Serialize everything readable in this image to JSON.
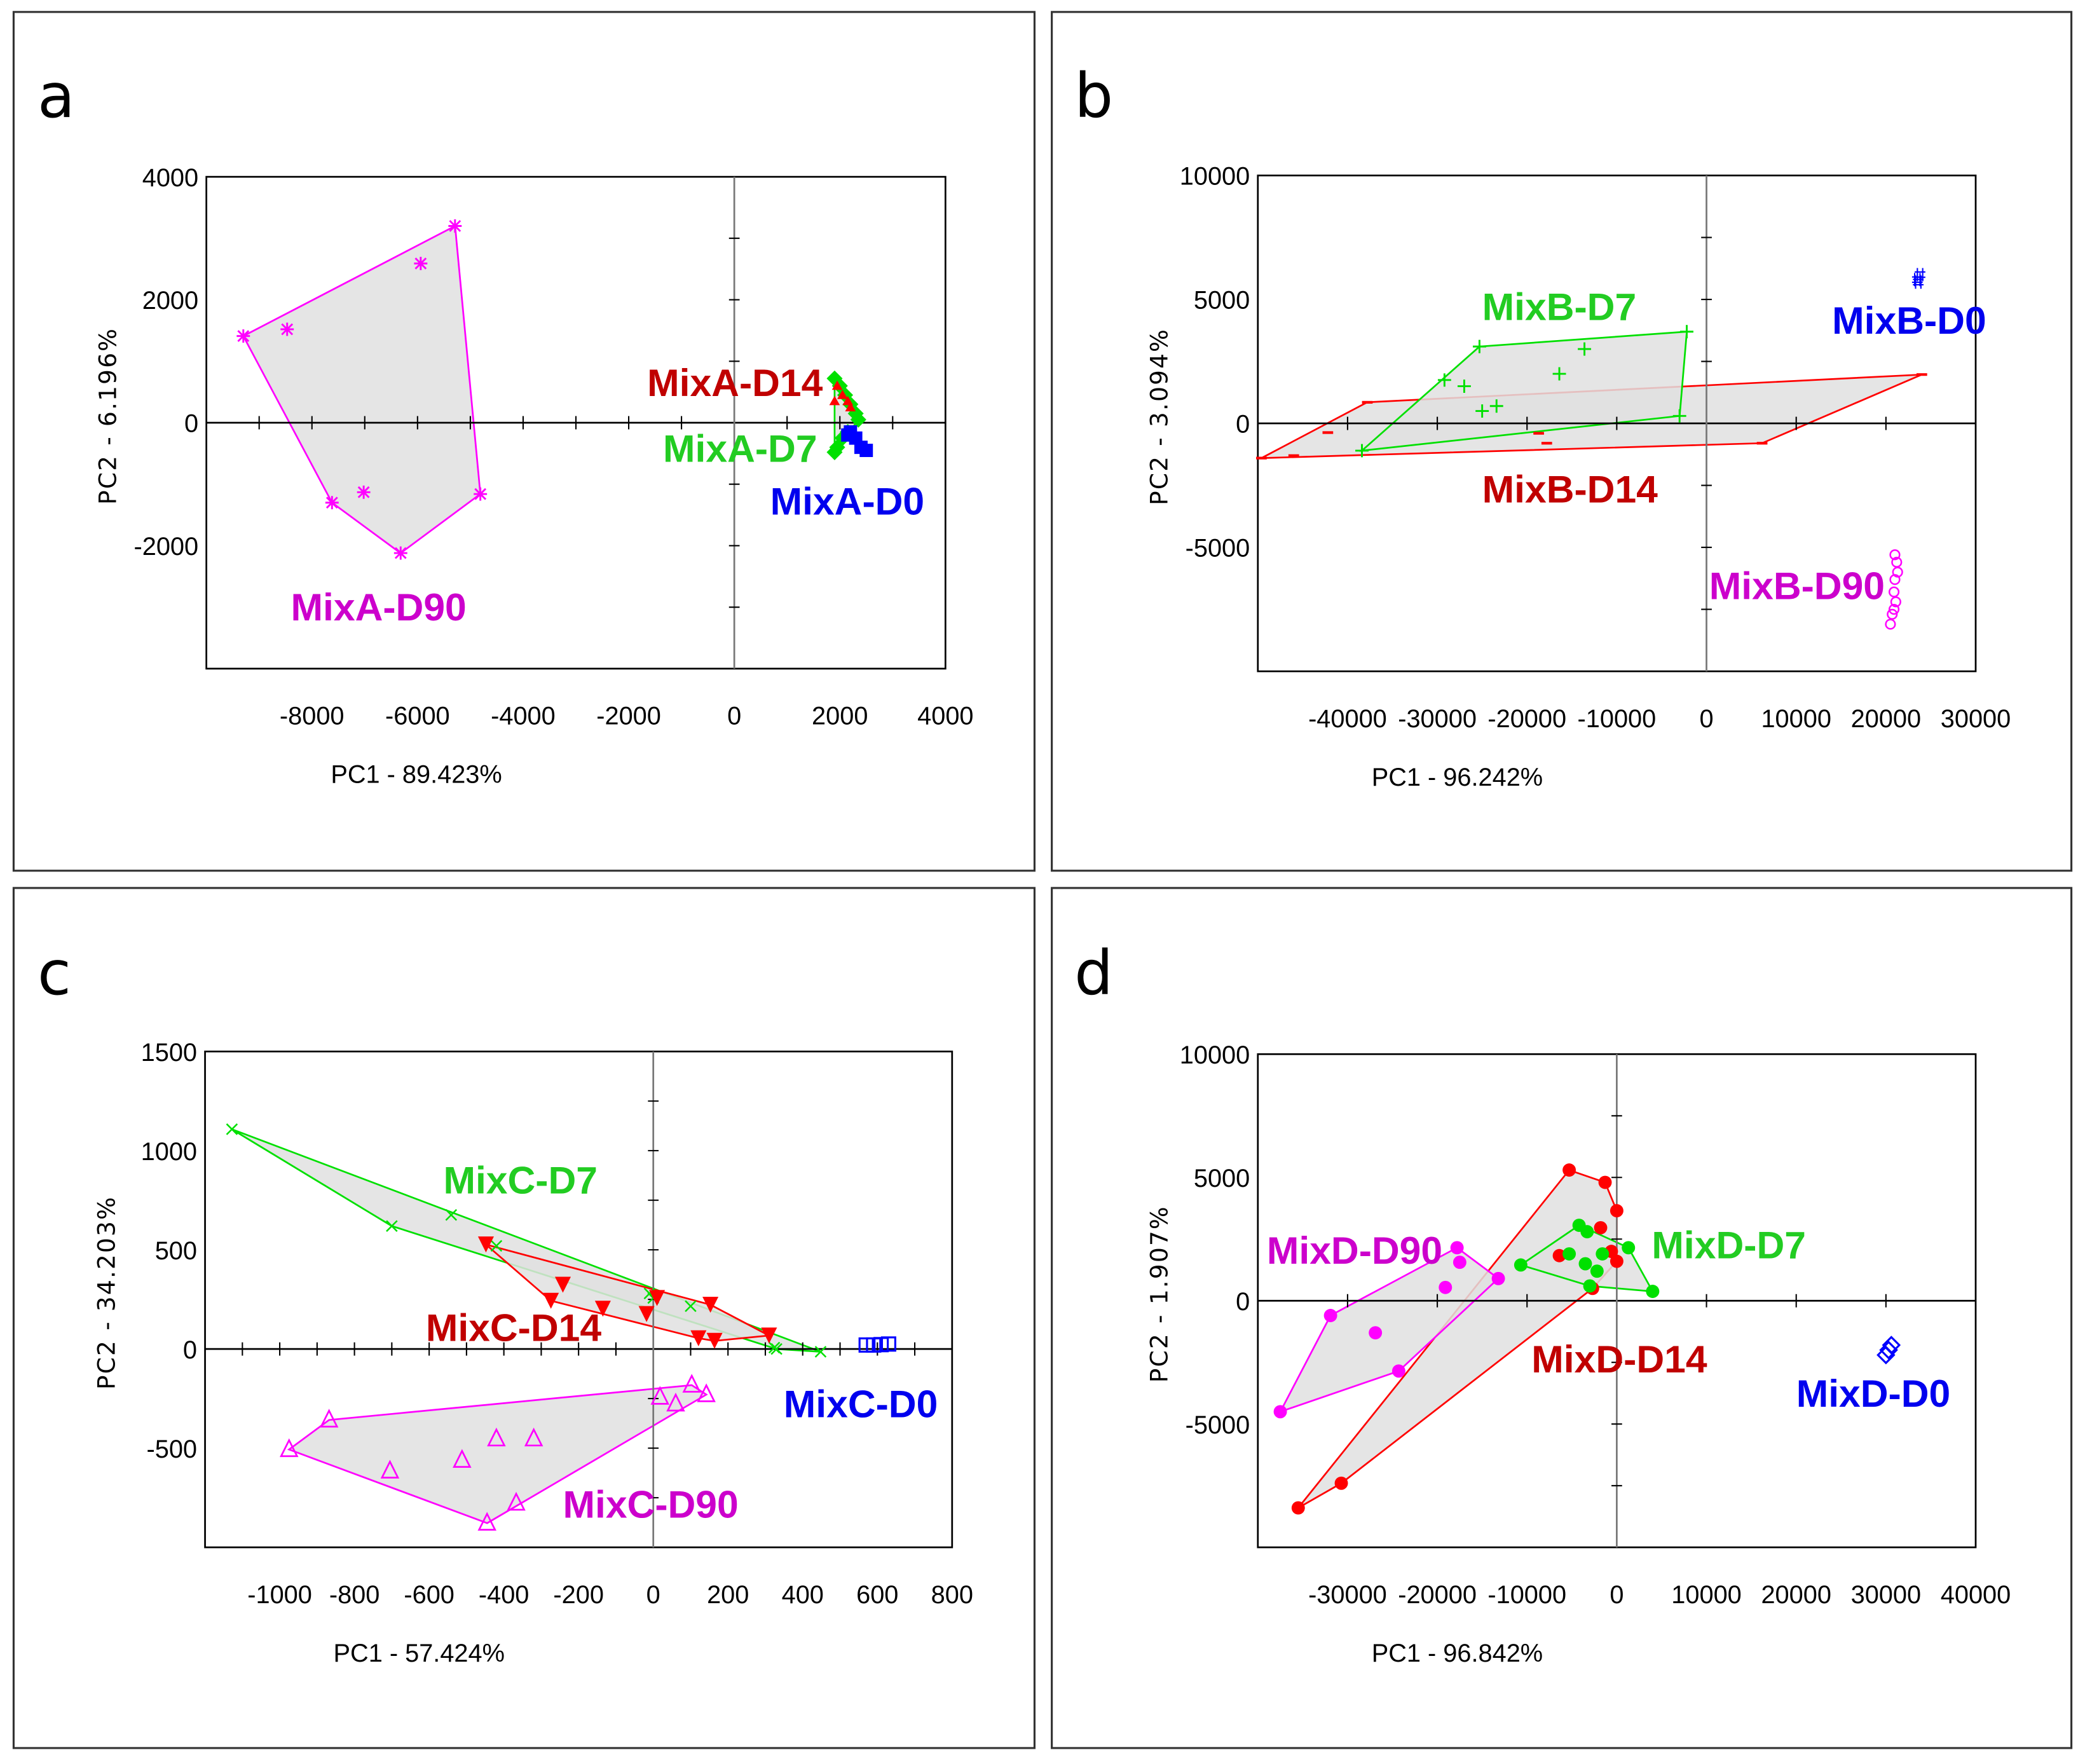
{
  "chart_data": [
    {
      "type": "scatter",
      "panel": "a",
      "xlabel": "PC1 - 89.423%",
      "ylabel": "PC2 - 6.196%",
      "xlim": [
        -10000,
        4000
      ],
      "ylim": [
        -4000,
        4000
      ],
      "xticks": [
        -8000,
        -6000,
        -4000,
        -2000,
        0,
        2000,
        4000
      ],
      "xstep": 1000,
      "yticks": [
        4000,
        2000,
        0,
        -2000
      ],
      "ystep": 1000,
      "series": [
        {
          "name": "MixA-D90",
          "marker": "asterisk",
          "color": "#ff00ff",
          "label_color": "#cc00cc",
          "hull": true,
          "label_at": [
            -8400,
            -3000
          ],
          "points": [
            [
              -9300,
              1410
            ],
            [
              -8470,
              1520
            ],
            [
              -5290,
              3200
            ],
            [
              -5940,
              2590
            ],
            [
              -4810,
              -1160
            ],
            [
              -6320,
              -2120
            ],
            [
              -7620,
              -1300
            ],
            [
              -7020,
              -1130
            ]
          ]
        },
        {
          "name": "MixA-D7",
          "marker": "diamond",
          "color": "#00e000",
          "label_color": "#22cc22",
          "hull": true,
          "label_at": [
            -1350,
            -420
          ],
          "points": [
            [
              1900,
              720
            ],
            [
              2000,
              600
            ],
            [
              2100,
              450
            ],
            [
              2200,
              300
            ],
            [
              2300,
              150
            ],
            [
              2350,
              50
            ],
            [
              1950,
              -400
            ],
            [
              2050,
              -250
            ],
            [
              2150,
              -150
            ],
            [
              1900,
              -480
            ]
          ]
        },
        {
          "name": "MixA-D14",
          "marker": "tri-up",
          "color": "#ff0000",
          "label_color": "#c00000",
          "hull": false,
          "label_at": [
            -1650,
            650
          ],
          "points": [
            [
              1950,
              600
            ],
            [
              2050,
              450
            ],
            [
              2150,
              350
            ],
            [
              2200,
              250
            ],
            [
              1900,
              350
            ]
          ]
        },
        {
          "name": "MixA-D0",
          "marker": "square-filled",
          "color": "#0000ff",
          "label_color": "#0000ee",
          "hull": false,
          "label_at": [
            680,
            -1280
          ],
          "points": [
            [
              2150,
              -200
            ],
            [
              2200,
              -150
            ],
            [
              2300,
              -250
            ],
            [
              2400,
              -400
            ],
            [
              2500,
              -450
            ]
          ]
        }
      ]
    },
    {
      "type": "scatter",
      "panel": "b",
      "xlabel": "PC1 - 96.242%",
      "ylabel": "PC2 - 3.094%",
      "xlim": [
        -50000,
        30000
      ],
      "ylim": [
        -10000,
        10000
      ],
      "xticks": [
        -40000,
        -30000,
        -20000,
        -10000,
        0,
        10000,
        20000,
        30000
      ],
      "xstep": 10000,
      "yticks": [
        10000,
        5000,
        0,
        -5000
      ],
      "ystep": 2500,
      "series": [
        {
          "name": "MixB-D14",
          "marker": "minus",
          "color": "#ff0000",
          "label_color": "#c00000",
          "hull": true,
          "label_at": [
            -25000,
            -2650
          ],
          "points": [
            [
              -49600,
              -1400
            ],
            [
              -37800,
              850
            ],
            [
              24000,
              1970
            ],
            [
              6200,
              -800
            ],
            [
              -42200,
              -370
            ],
            [
              -18700,
              -400
            ],
            [
              -17800,
              -800
            ],
            [
              -46000,
              -1300
            ]
          ]
        },
        {
          "name": "MixB-D7",
          "marker": "plus",
          "color": "#00e000",
          "label_color": "#22cc22",
          "hull": true,
          "label_at": [
            -25000,
            4700
          ],
          "points": [
            [
              -38400,
              -1100
            ],
            [
              -25300,
              3100
            ],
            [
              -2200,
              3700
            ],
            [
              -3000,
              300
            ],
            [
              -29200,
              1750
            ],
            [
              -27000,
              1500
            ],
            [
              -16400,
              2000
            ],
            [
              -13600,
              3000
            ],
            [
              -25000,
              500
            ],
            [
              -23400,
              700
            ]
          ]
        },
        {
          "name": "MixB-D0",
          "marker": "hash",
          "color": "#0000ff",
          "label_color": "#0000ee",
          "hull": false,
          "label_at": [
            14000,
            4150
          ],
          "points": [
            [
              23500,
              5800
            ],
            [
              23800,
              6000
            ],
            [
              23600,
              5700
            ]
          ]
        },
        {
          "name": "MixB-D90",
          "marker": "circle-open",
          "color": "#ff00ff",
          "label_color": "#cc00cc",
          "hull": false,
          "label_at": [
            300,
            -6550
          ],
          "points": [
            [
              21000,
              -5300
            ],
            [
              21200,
              -5600
            ],
            [
              21300,
              -6000
            ],
            [
              21000,
              -6300
            ],
            [
              20900,
              -6800
            ],
            [
              21100,
              -7200
            ],
            [
              20700,
              -7700
            ],
            [
              20500,
              -8100
            ],
            [
              20900,
              -7500
            ]
          ]
        }
      ]
    },
    {
      "type": "scatter",
      "panel": "c",
      "xlabel": "PC1 - 57.424%",
      "ylabel": "PC2 - 34.203%",
      "xlim": [
        -1200,
        800
      ],
      "ylim": [
        -1000,
        1500
      ],
      "xticks": [
        -1000,
        -800,
        -600,
        -400,
        -200,
        0,
        200,
        400,
        600,
        800
      ],
      "xstep": 100,
      "yticks": [
        1500,
        1000,
        500,
        0,
        -500
      ],
      "ystep": 250,
      "series": [
        {
          "name": "MixC-D7",
          "marker": "cross",
          "color": "#00e000",
          "label_color": "#22cc22",
          "hull": true,
          "label_at": [
            -562,
            851
          ],
          "points": [
            [
              -1128,
              1108
            ],
            [
              -700,
              620
            ],
            [
              -541,
              676
            ],
            [
              -420,
              520
            ],
            [
              100,
              216
            ],
            [
              0,
              257
            ],
            [
              324,
              7
            ],
            [
              448,
              -14
            ],
            [
              330,
              0
            ],
            [
              -10,
              280
            ]
          ]
        },
        {
          "name": "MixC-D14",
          "marker": "tri-down-filled",
          "color": "#ff0000",
          "label_color": "#c00000",
          "hull": true,
          "label_at": [
            -609,
            108
          ],
          "points": [
            [
              -448,
              527
            ],
            [
              -242,
              324
            ],
            [
              -274,
              243
            ],
            [
              -135,
              203
            ],
            [
              -18,
              176
            ],
            [
              10,
              257
            ],
            [
              153,
              223
            ],
            [
              121,
              54
            ],
            [
              164,
              41
            ],
            [
              310,
              68
            ]
          ]
        },
        {
          "name": "MixC-D0",
          "marker": "square-open",
          "color": "#0000ff",
          "label_color": "#0000ee",
          "hull": false,
          "label_at": [
            349,
            -277
          ],
          "points": [
            [
              570,
              20
            ],
            [
              590,
              20
            ],
            [
              610,
              22
            ],
            [
              630,
              25
            ]
          ]
        },
        {
          "name": "MixC-D90",
          "marker": "tri-up-open",
          "color": "#ff00ff",
          "label_color": "#cc00cc",
          "hull": true,
          "label_at": [
            -242,
            -784
          ],
          "points": [
            [
              -975,
              -507
            ],
            [
              -868,
              -358
            ],
            [
              -705,
              -615
            ],
            [
              -512,
              -561
            ],
            [
              -420,
              -453
            ],
            [
              -320,
              -453
            ],
            [
              -445,
              -878
            ],
            [
              -367,
              -777
            ],
            [
              18,
              -243
            ],
            [
              60,
              -277
            ],
            [
              103,
              -182
            ],
            [
              142,
              -230
            ]
          ]
        }
      ]
    },
    {
      "type": "scatter",
      "panel": "d",
      "xlabel": "PC1 - 96.842%",
      "ylabel": "PC2 - 1.907%",
      "xlim": [
        -40000,
        40000
      ],
      "ylim": [
        -10000,
        10000
      ],
      "xticks": [
        -30000,
        -20000,
        -10000,
        0,
        10000,
        20000,
        30000,
        40000
      ],
      "xstep": 10000,
      "yticks": [
        10000,
        5000,
        0,
        -5000
      ],
      "ystep": 2500,
      "series": [
        {
          "name": "MixD-D14",
          "marker": "dot",
          "color": "#ff0000",
          "label_color": "#c00000",
          "hull": true,
          "label_at": [
            -9500,
            -2370
          ],
          "points": [
            [
              -5300,
              5300
            ],
            [
              -1300,
              4800
            ],
            [
              0,
              3650
            ],
            [
              -1800,
              2960
            ],
            [
              -6400,
              1830
            ],
            [
              -600,
              2000
            ],
            [
              0,
              1600
            ],
            [
              -2700,
              500
            ],
            [
              -30700,
              -7400
            ],
            [
              -35500,
              -8400
            ]
          ]
        },
        {
          "name": "MixD-D7",
          "marker": "dot",
          "color": "#00e000",
          "label_color": "#22cc22",
          "hull": true,
          "label_at": [
            3900,
            2260
          ],
          "points": [
            [
              -10700,
              1450
            ],
            [
              -4200,
              3060
            ],
            [
              -3300,
              2800
            ],
            [
              -5300,
              1900
            ],
            [
              -3500,
              1500
            ],
            [
              -1600,
              1900
            ],
            [
              1300,
              2150
            ],
            [
              4000,
              380
            ],
            [
              -2200,
              1200
            ],
            [
              -3000,
              600
            ]
          ]
        },
        {
          "name": "MixD-D90",
          "marker": "dot",
          "color": "#ff00ff",
          "label_color": "#cc00cc",
          "hull": true,
          "label_at": [
            -39000,
            2040
          ],
          "points": [
            [
              -37500,
              -4500
            ],
            [
              -31900,
              -600
            ],
            [
              -26900,
              -1300
            ],
            [
              -24300,
              -2850
            ],
            [
              -17800,
              2150
            ],
            [
              -17500,
              1560
            ],
            [
              -19100,
              540
            ],
            [
              -13200,
              900
            ]
          ]
        },
        {
          "name": "MixD-D0",
          "marker": "diamond-open",
          "color": "#0000ff",
          "label_color": "#0000ee",
          "hull": false,
          "label_at": [
            20000,
            -3760
          ],
          "points": [
            [
              30300,
              -2000
            ],
            [
              30600,
              -1800
            ],
            [
              30000,
              -2200
            ]
          ]
        }
      ]
    }
  ]
}
